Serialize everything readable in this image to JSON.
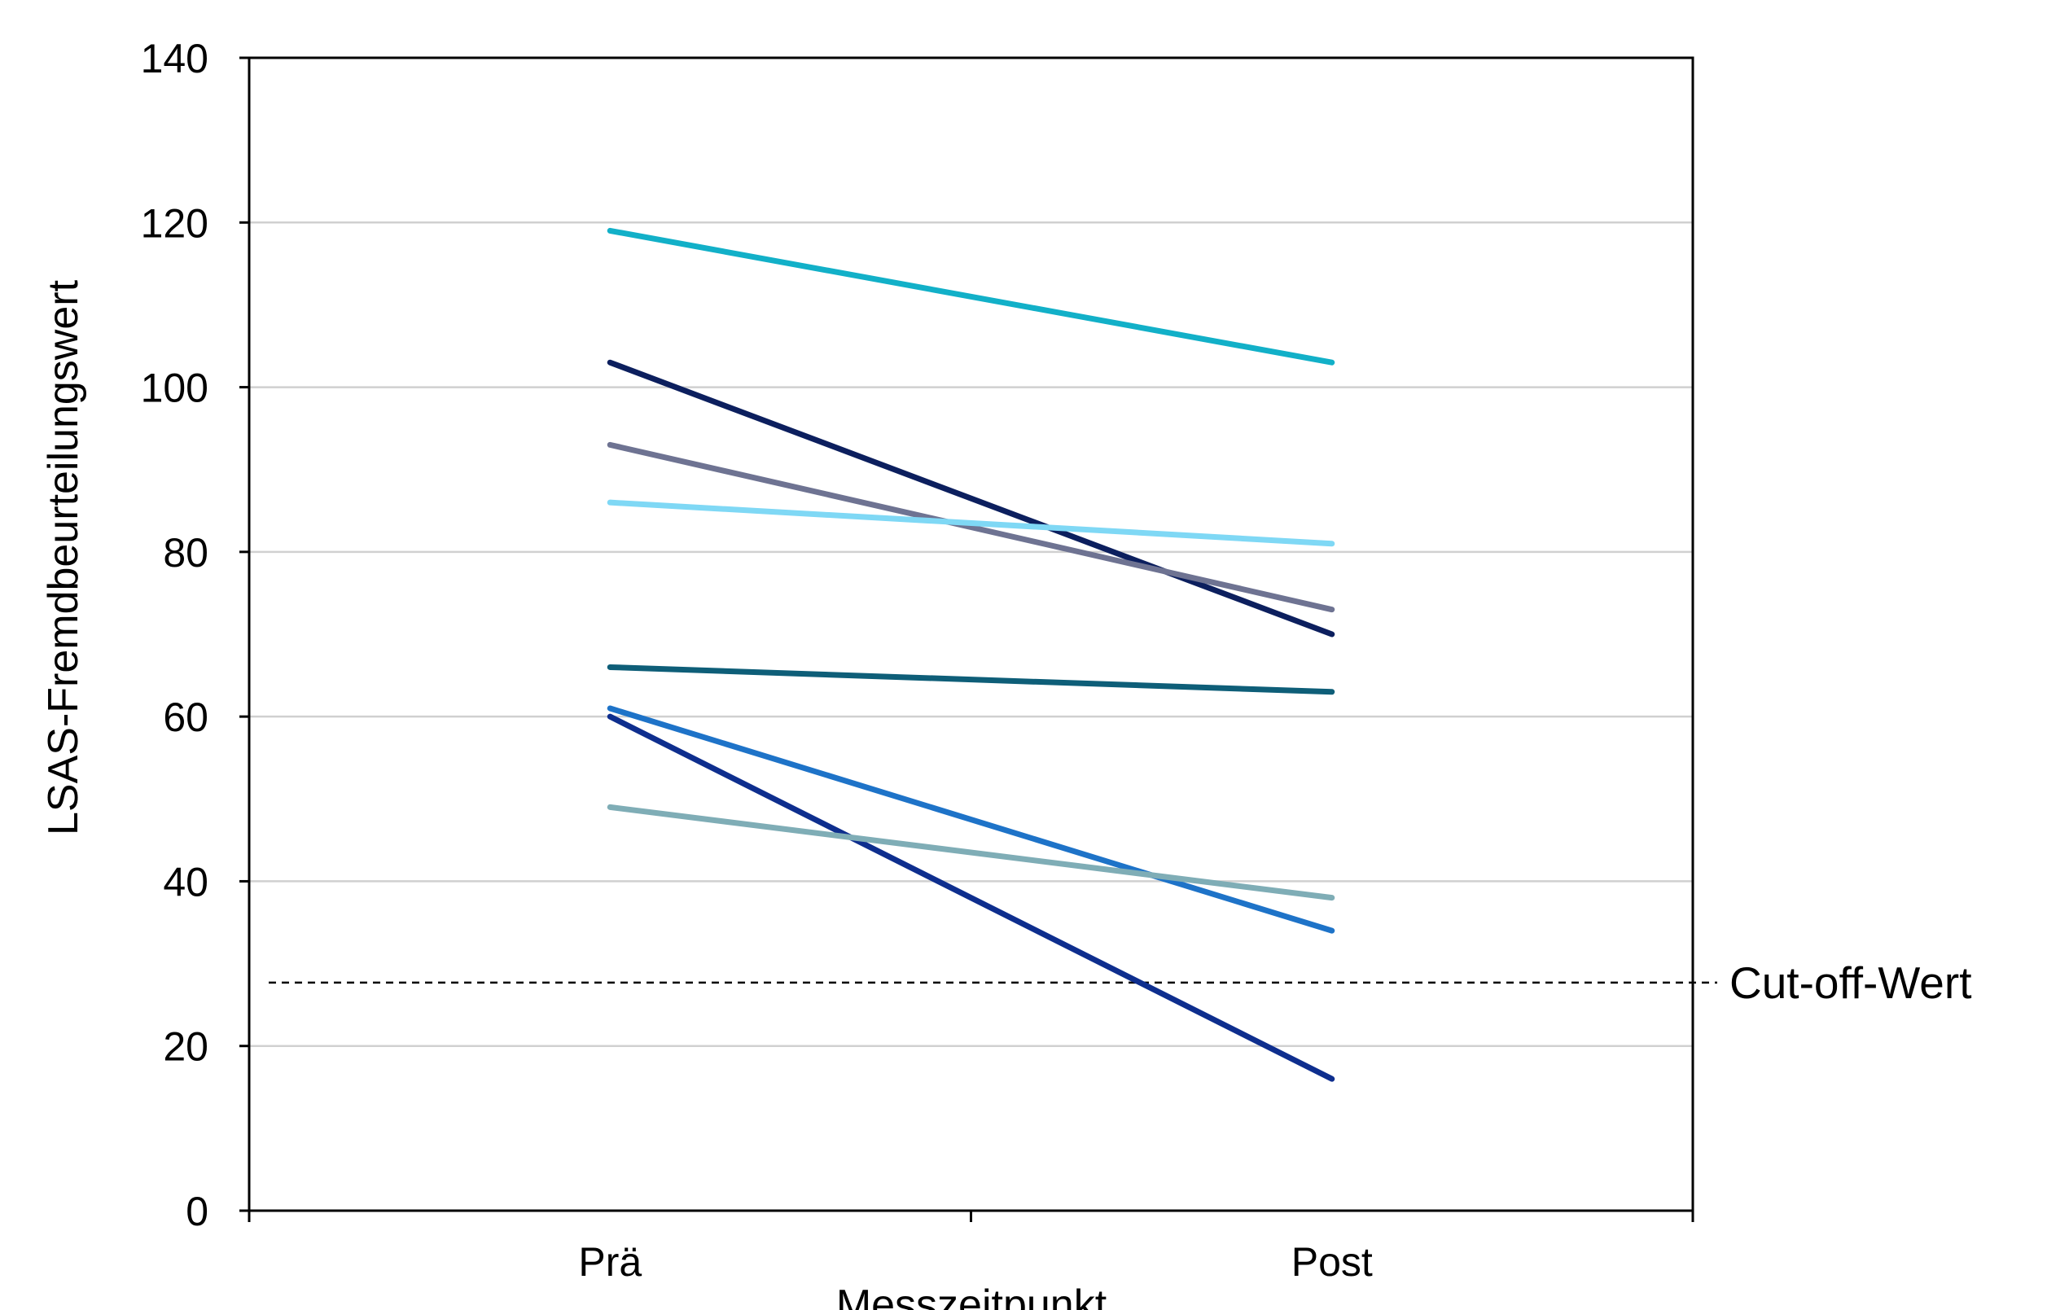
{
  "chart_data": {
    "type": "line",
    "title": "",
    "xlabel": "Messzeitpunkt",
    "ylabel": "LSAS-Fremdbeurteilungswert",
    "categories": [
      "Prä",
      "Post"
    ],
    "ylim": [
      0,
      140
    ],
    "yticks": [
      0,
      20,
      40,
      60,
      80,
      100,
      120,
      140
    ],
    "grid": true,
    "legend": "none",
    "series": [
      {
        "color": "#12B0C8",
        "values": [
          119,
          103
        ]
      },
      {
        "color": "#0C1F5E",
        "values": [
          103,
          70
        ]
      },
      {
        "color": "#6E7392",
        "values": [
          93,
          73
        ]
      },
      {
        "color": "#7FD8F5",
        "values": [
          86,
          81
        ]
      },
      {
        "color": "#0E5E78",
        "values": [
          66,
          63
        ]
      },
      {
        "color": "#1E73C8",
        "values": [
          61,
          34
        ]
      },
      {
        "color": "#0E2E8E",
        "values": [
          60,
          16
        ]
      },
      {
        "color": "#7FADB6",
        "values": [
          49,
          38
        ]
      }
    ],
    "annotations": [
      {
        "text": "Cut-off-Wert",
        "y": 27.7,
        "style": "dashed"
      }
    ]
  }
}
